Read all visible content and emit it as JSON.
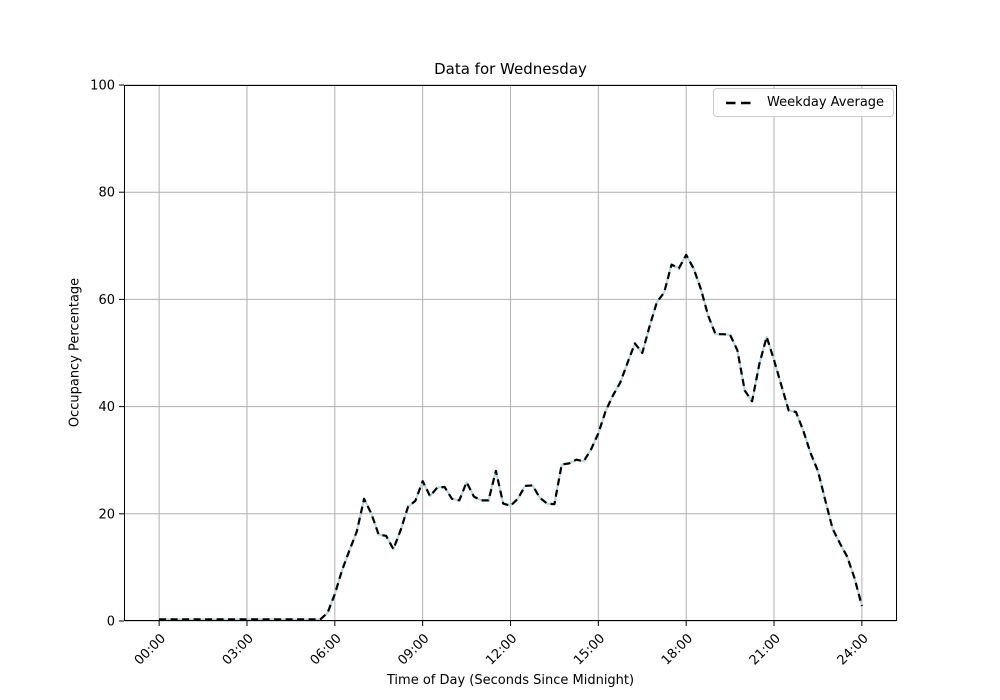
{
  "chart_data": {
    "type": "line",
    "title": "Data for Wednesday",
    "xlabel": "Time of Day (Seconds Since Midnight)",
    "ylabel": "Occupancy Percentage",
    "x_unit": "hours",
    "x_start": 0,
    "x_step": 0.25,
    "xlim_hours": [
      -1.2,
      25.2
    ],
    "ylim": [
      0,
      100
    ],
    "x_ticks_hours": [
      0,
      3,
      6,
      9,
      12,
      15,
      18,
      21,
      24
    ],
    "x_tick_labels": [
      "00:00",
      "03:00",
      "06:00",
      "09:00",
      "12:00",
      "15:00",
      "18:00",
      "21:00",
      "24:00"
    ],
    "y_ticks": [
      0,
      20,
      40,
      60,
      80,
      100
    ],
    "y_tick_labels": [
      "0",
      "20",
      "40",
      "60",
      "80",
      "100"
    ],
    "grid": true,
    "grid_color": "#b0b0b0",
    "legend_location": "upper right",
    "series": [
      {
        "name": "Wednesday occupancy (unlabeled solid line)",
        "color": "#add8e6",
        "style": "solid",
        "in_legend": false
      },
      {
        "name": "Weekday Average",
        "color": "#000000",
        "style": "dashed",
        "in_legend": true
      }
    ],
    "note": "Both lines overlap and follow the same values (dashed black drawn over solid light blue)",
    "values": [
      0.3,
      0.3,
      0.3,
      0.3,
      0.3,
      0.3,
      0.3,
      0.3,
      0.3,
      0.3,
      0.3,
      0.3,
      0.3,
      0.3,
      0.3,
      0.3,
      0.3,
      0.3,
      0.3,
      0.3,
      0.3,
      0.3,
      0.3,
      1.5,
      5,
      9.5,
      13.2,
      16.7,
      22.8,
      20,
      16.1,
      15.9,
      13.4,
      17,
      21.3,
      22.4,
      26.1,
      23.3,
      24.9,
      25,
      22.8,
      22.5,
      25.9,
      23.2,
      22.5,
      22.5,
      28,
      21.9,
      21.5,
      22.8,
      25.2,
      25.3,
      23,
      21.9,
      21.8,
      29.2,
      29.4,
      30.1,
      29.8,
      32,
      35,
      39.2,
      42.1,
      44.5,
      48.2,
      51.8,
      50,
      55,
      59.5,
      61.3,
      66.5,
      65.8,
      68.3,
      65.8,
      62,
      57,
      53.5,
      53.5,
      53.4,
      50.5,
      43,
      41,
      48,
      53,
      48.7,
      44,
      39.3,
      39,
      35.5,
      31.3,
      28,
      22.5,
      17.2,
      14.5,
      12,
      8,
      2.8
    ]
  }
}
